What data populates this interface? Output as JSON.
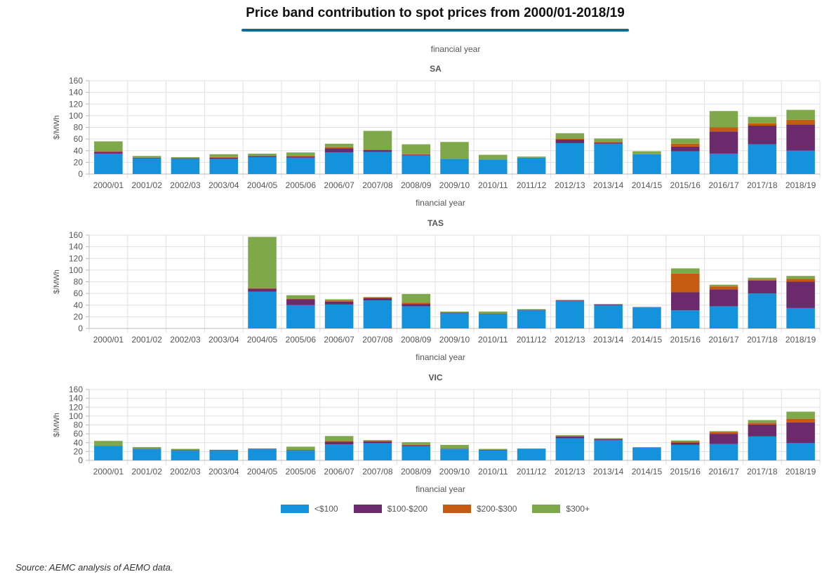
{
  "page": {
    "title": "Price band contribution to spot prices from 2000/01-2018/19",
    "top_axis_label": "financial year",
    "source": "Source: AEMC analysis of AEMO data."
  },
  "legend": [
    {
      "label": "<$100",
      "color": "#1592dc"
    },
    {
      "label": "$100-$200",
      "color": "#6a2a6c"
    },
    {
      "label": "$200-$300",
      "color": "#c55a11"
    },
    {
      "label": "$300+",
      "color": "#7fa84a"
    }
  ],
  "chart_data": [
    {
      "type": "bar",
      "stacked": true,
      "title": "SA",
      "xlabel": "financial year",
      "ylabel": "$/MWh",
      "ylim": [
        0,
        160
      ],
      "yticks": [
        0,
        20,
        40,
        60,
        80,
        100,
        120,
        140,
        160
      ],
      "grid": true,
      "categories": [
        "2000/01",
        "2001/02",
        "2002/03",
        "2003/04",
        "2004/05",
        "2005/06",
        "2006/07",
        "2007/08",
        "2008/09",
        "2009/10",
        "2010/11",
        "2011/12",
        "2012/13",
        "2013/14",
        "2014/15",
        "2015/16",
        "2016/17",
        "2017/18",
        "2018/19"
      ],
      "series": [
        {
          "name": "<$100",
          "values": [
            35,
            27,
            26,
            26,
            29,
            28,
            37,
            38,
            32,
            26,
            25,
            28,
            53,
            52,
            34,
            39,
            35,
            51,
            40
          ]
        },
        {
          "name": "$100-$200",
          "values": [
            3,
            1,
            1,
            2,
            2,
            2,
            7,
            3,
            1,
            0,
            0,
            0,
            6,
            2,
            0,
            8,
            38,
            32,
            45
          ]
        },
        {
          "name": "$200-$300",
          "values": [
            1,
            0,
            0,
            1,
            0,
            1,
            2,
            1,
            1,
            0,
            0,
            0,
            2,
            1,
            0,
            5,
            7,
            4,
            8
          ]
        },
        {
          "name": "$300+",
          "values": [
            17,
            3,
            2,
            5,
            4,
            6,
            6,
            32,
            17,
            29,
            8,
            2,
            9,
            6,
            5,
            9,
            28,
            11,
            17
          ]
        }
      ]
    },
    {
      "type": "bar",
      "stacked": true,
      "title": "TAS",
      "xlabel": "financial year",
      "ylabel": "$/MWh",
      "ylim": [
        0,
        160
      ],
      "yticks": [
        0,
        20,
        40,
        60,
        80,
        100,
        120,
        140,
        160
      ],
      "grid": true,
      "categories": [
        "2000/01",
        "2001/02",
        "2002/03",
        "2003/04",
        "2004/05",
        "2005/06",
        "2006/07",
        "2007/08",
        "2008/09",
        "2009/10",
        "2010/11",
        "2011/12",
        "2012/13",
        "2013/14",
        "2014/15",
        "2015/16",
        "2016/17",
        "2017/18",
        "2018/19"
      ],
      "series": [
        {
          "name": "<$100",
          "values": [
            0,
            0,
            0,
            0,
            63,
            40,
            41,
            48,
            38,
            26,
            24,
            31,
            47,
            40,
            36,
            31,
            38,
            60,
            35
          ]
        },
        {
          "name": "$100-$200",
          "values": [
            0,
            0,
            0,
            0,
            5,
            10,
            5,
            4,
            4,
            1,
            1,
            1,
            1,
            1,
            0,
            31,
            29,
            22,
            45
          ]
        },
        {
          "name": "$200-$300",
          "values": [
            0,
            0,
            0,
            0,
            1,
            1,
            2,
            1,
            2,
            0,
            0,
            0,
            0,
            0,
            0,
            32,
            5,
            2,
            5
          ]
        },
        {
          "name": "$300+",
          "values": [
            0,
            0,
            0,
            0,
            88,
            6,
            2,
            1,
            15,
            2,
            4,
            1,
            1,
            1,
            1,
            9,
            3,
            3,
            5
          ]
        }
      ]
    },
    {
      "type": "bar",
      "stacked": true,
      "title": "VIC",
      "xlabel": "financial year",
      "ylabel": "$/MWh",
      "ylim": [
        0,
        160
      ],
      "yticks": [
        0,
        20,
        40,
        60,
        80,
        100,
        120,
        140,
        160
      ],
      "grid": true,
      "categories": [
        "2000/01",
        "2001/02",
        "2002/03",
        "2003/04",
        "2004/05",
        "2005/06",
        "2006/07",
        "2007/08",
        "2008/09",
        "2009/10",
        "2010/11",
        "2011/12",
        "2012/13",
        "2013/14",
        "2014/15",
        "2015/16",
        "2016/17",
        "2017/18",
        "2018/19"
      ],
      "series": [
        {
          "name": "<$100",
          "values": [
            32,
            25,
            22,
            22,
            25,
            22,
            36,
            39,
            32,
            25,
            23,
            26,
            50,
            46,
            29,
            35,
            37,
            54,
            39
          ]
        },
        {
          "name": "$100-$200",
          "values": [
            1,
            1,
            1,
            1,
            1,
            1,
            6,
            4,
            2,
            1,
            1,
            0,
            4,
            2,
            0,
            5,
            23,
            27,
            47
          ]
        },
        {
          "name": "$200-$300",
          "values": [
            0,
            0,
            0,
            0,
            0,
            0,
            2,
            1,
            1,
            0,
            0,
            0,
            1,
            1,
            0,
            3,
            4,
            4,
            8
          ]
        },
        {
          "name": "$300+",
          "values": [
            11,
            4,
            3,
            1,
            1,
            8,
            11,
            2,
            6,
            9,
            2,
            1,
            2,
            1,
            1,
            2,
            2,
            6,
            16
          ]
        }
      ]
    }
  ]
}
